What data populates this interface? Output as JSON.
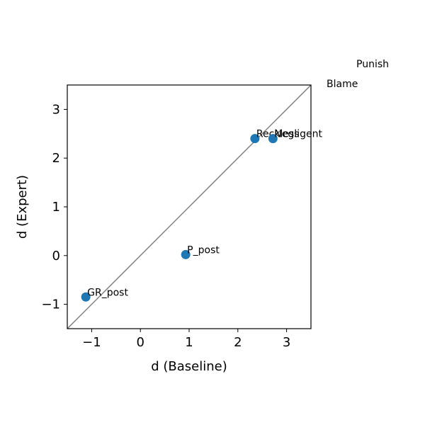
{
  "chart_data": {
    "type": "scatter",
    "xlabel": "d (Baseline)",
    "ylabel": "d (Expert)",
    "xlim": [
      -1.5,
      3.5
    ],
    "ylim": [
      -1.5,
      3.5
    ],
    "x_ticks": [
      -1,
      0,
      1,
      2,
      3
    ],
    "y_ticks": [
      -1,
      0,
      1,
      2,
      3
    ],
    "x_tick_labels": [
      "−1",
      "0",
      "1",
      "2",
      "3"
    ],
    "y_tick_labels": [
      "−1",
      "0",
      "1",
      "2",
      "3"
    ],
    "reference_line": {
      "kind": "y=x",
      "color": "#808080"
    },
    "point_color": "#1f77b4",
    "points": [
      {
        "label": "GR_post",
        "x": -1.12,
        "y": -0.85
      },
      {
        "label": "P_post",
        "x": 0.93,
        "y": 0.02
      },
      {
        "label": "Reckless",
        "x": 2.35,
        "y": 2.4
      },
      {
        "label": "Negligent",
        "x": 2.72,
        "y": 2.4
      }
    ],
    "outside_labels": [
      "Punish",
      "Blame"
    ],
    "grid": false
  }
}
